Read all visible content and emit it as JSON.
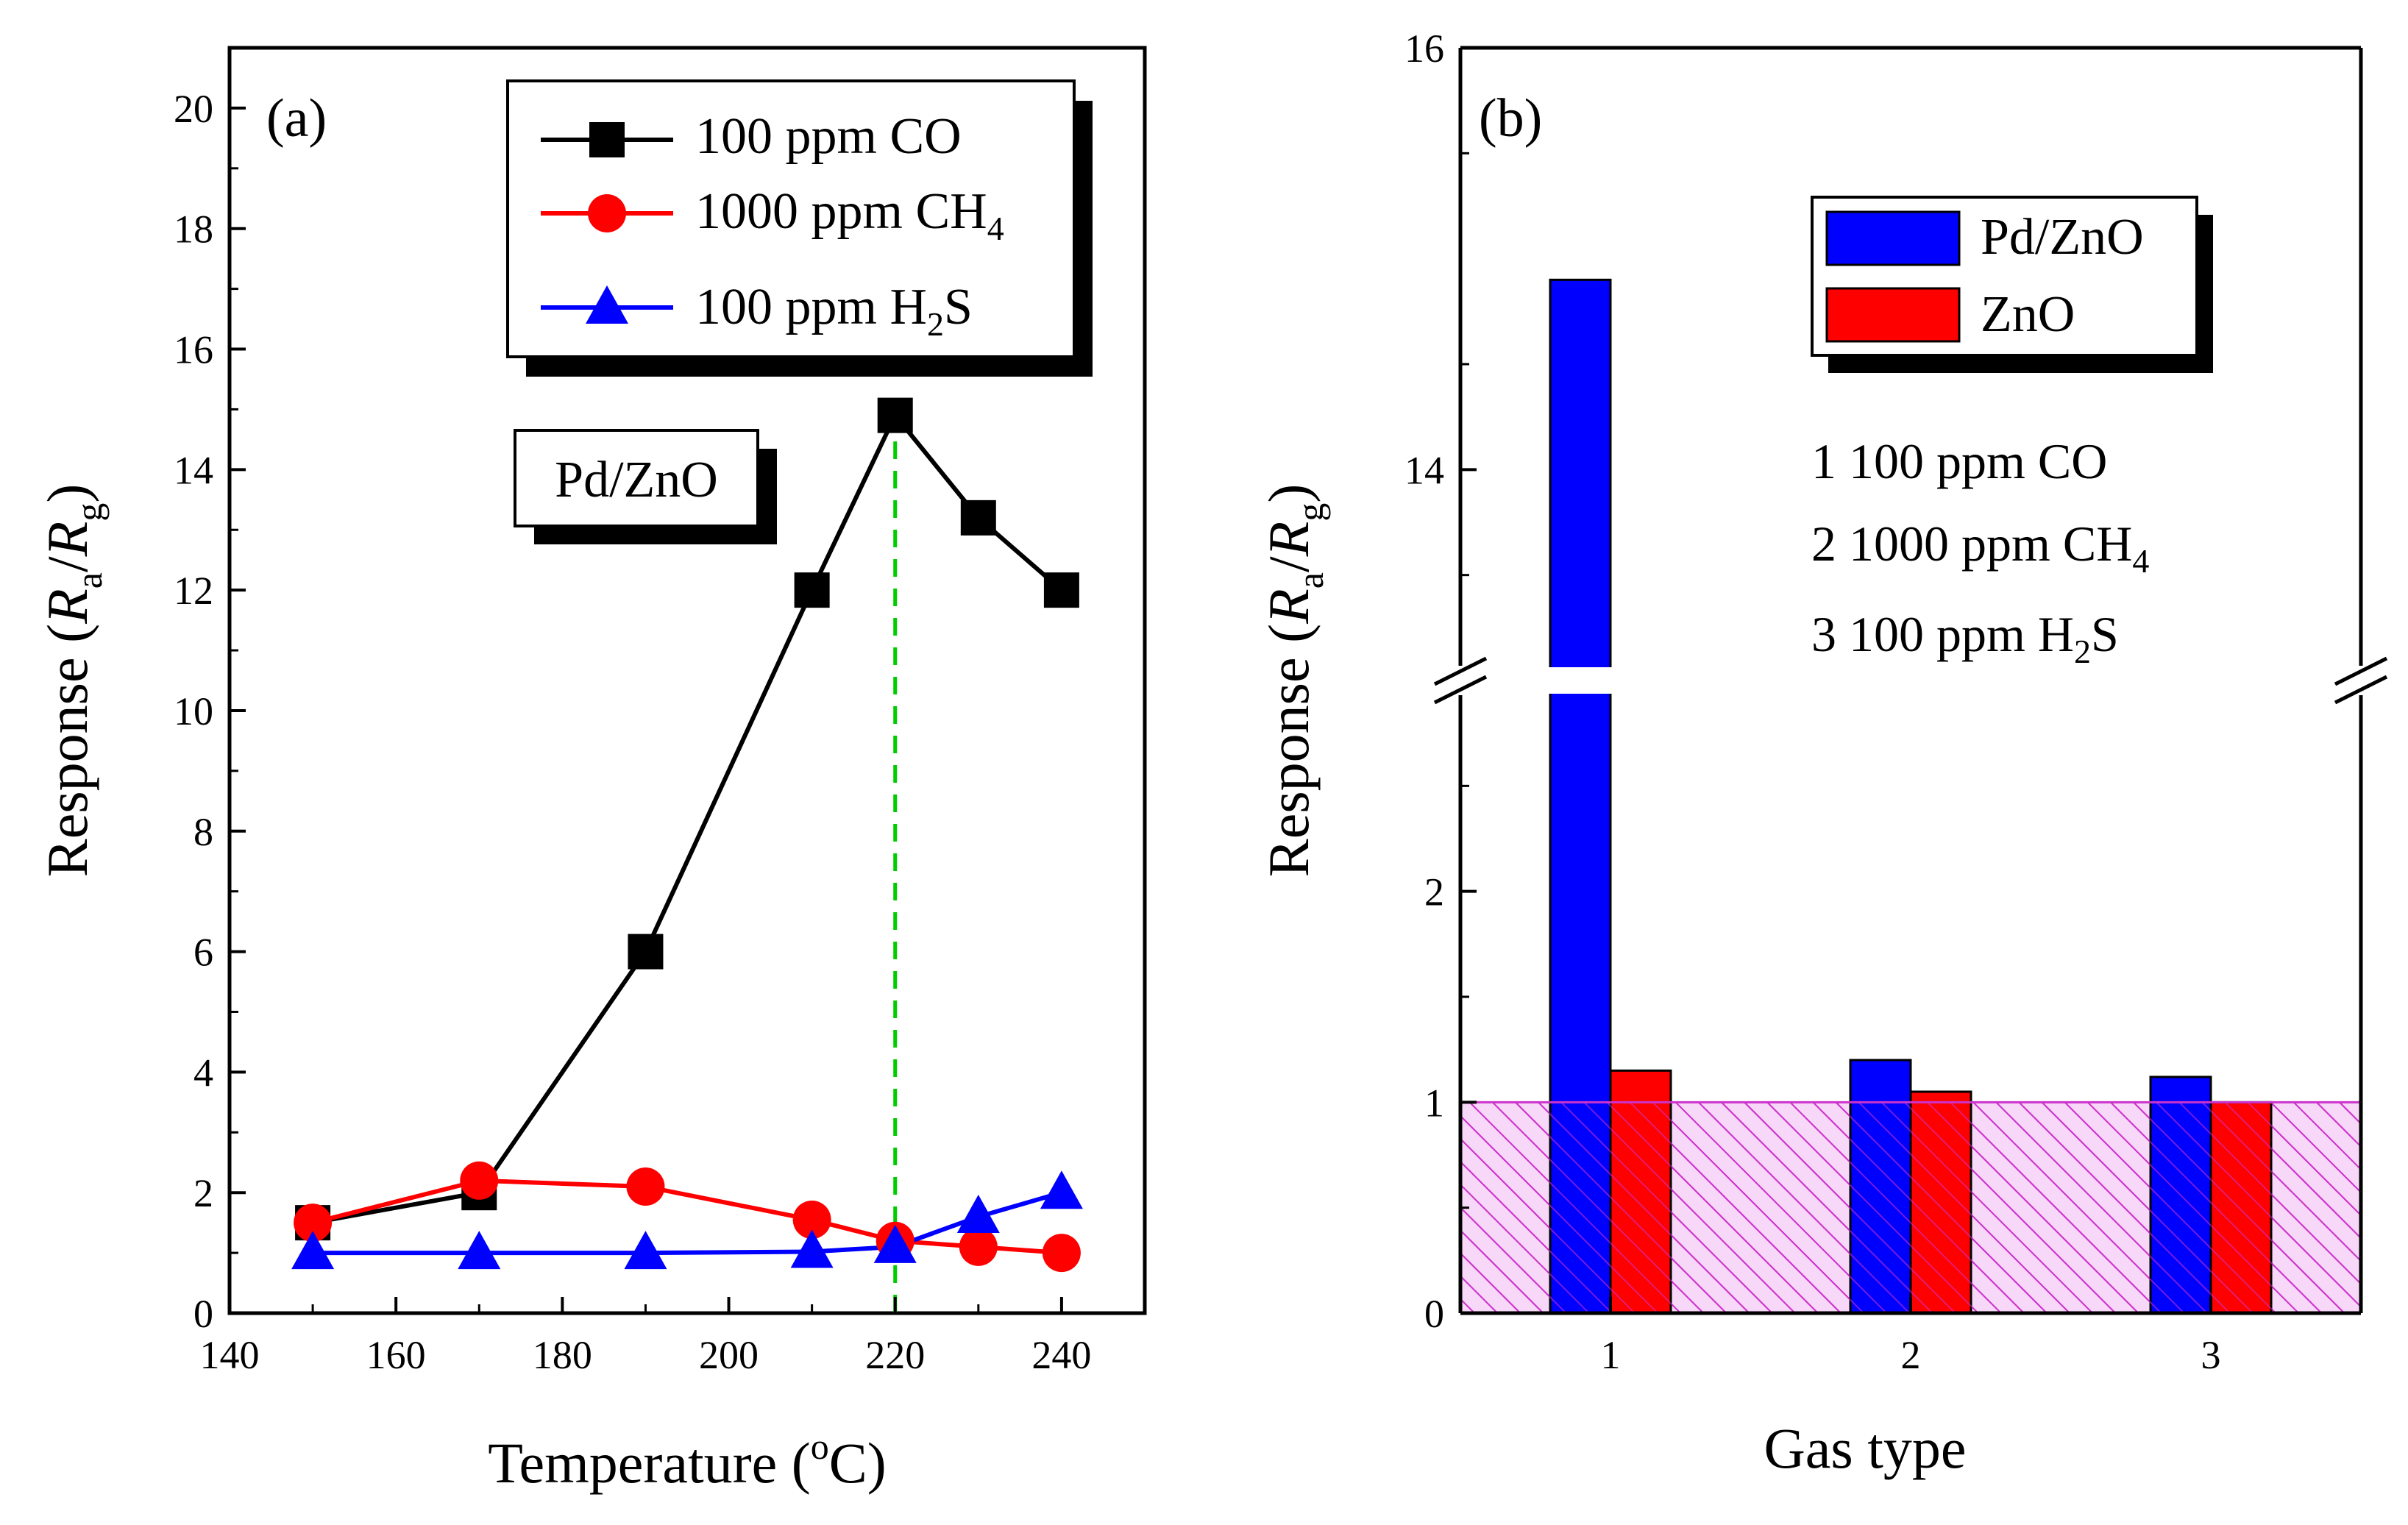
{
  "colors": {
    "co": "#000000",
    "ch4": "#ff0000",
    "h2s": "#0000ff",
    "pdzno_bar": "#0000ff",
    "zno_bar": "#ff0000",
    "guide_line": "#00cc00",
    "baseline_hatch": "#cc33cc",
    "baseline_fill": "#f8d8f8"
  },
  "chart_data": [
    {
      "type": "line",
      "panel_label": "(a)",
      "xlabel": {
        "main": "Temperature (",
        "sup": "o",
        "end": "C)"
      },
      "ylabel": {
        "main": "Response (",
        "r1": "R",
        "s1": "a",
        "sep": "/",
        "r2": "R",
        "s2": "g",
        "end": ")"
      },
      "xlim": [
        140,
        250
      ],
      "ylim": [
        0,
        21
      ],
      "xticks": [
        140,
        160,
        180,
        200,
        220,
        240
      ],
      "yticks": [
        0,
        2,
        4,
        6,
        8,
        10,
        12,
        14,
        16,
        18,
        20
      ],
      "guide_line_x": 220,
      "inset_label": "Pd/ZnO",
      "legend_position": "top-right",
      "series": [
        {
          "key": "co",
          "name": "100 ppm CO",
          "legend": {
            "pre": "100 ppm CO",
            "sub": "",
            "post": ""
          },
          "marker": "square",
          "x": [
            150,
            170,
            190,
            210,
            220,
            230,
            240
          ],
          "y": [
            1.5,
            2.0,
            6.0,
            12.0,
            14.9,
            13.2,
            12.0
          ]
        },
        {
          "key": "ch4",
          "name": "1000 ppm CH4",
          "legend": {
            "pre": "1000 ppm CH",
            "sub": "4",
            "post": ""
          },
          "marker": "circle",
          "x": [
            150,
            170,
            190,
            210,
            220,
            230,
            240
          ],
          "y": [
            1.5,
            2.2,
            2.1,
            1.55,
            1.2,
            1.1,
            1.0
          ]
        },
        {
          "key": "h2s",
          "name": "100 ppm H2S",
          "legend": {
            "pre": "100 ppm H",
            "sub": "2",
            "post": "S"
          },
          "marker": "triangle",
          "x": [
            150,
            170,
            190,
            210,
            220,
            230,
            240
          ],
          "y": [
            1.0,
            1.0,
            1.0,
            1.02,
            1.1,
            1.6,
            2.0
          ]
        }
      ]
    },
    {
      "type": "bar",
      "panel_label": "(b)",
      "xlabel": "Gas type",
      "ylabel": {
        "main": "Response (",
        "r1": "R",
        "s1": "a",
        "sep": "/",
        "r2": "R",
        "s2": "g",
        "end": ")"
      },
      "categories": [
        "1",
        "2",
        "3"
      ],
      "axis_break": {
        "lower": [
          0,
          3
        ],
        "upper": [
          13,
          16
        ]
      },
      "yticks": [
        0,
        1,
        2,
        14,
        16
      ],
      "baseline": 1,
      "legend_position": "top-right",
      "series": [
        {
          "key": "pdzno_bar",
          "name": "Pd/ZnO",
          "values": [
            14.9,
            1.2,
            1.12
          ]
        },
        {
          "key": "zno_bar",
          "name": "ZnO",
          "values": [
            1.15,
            1.05,
            1.0
          ]
        }
      ],
      "gas_key": [
        {
          "pre": "1 100 ppm CO",
          "sub": "",
          "post": ""
        },
        {
          "pre": "2 1000 ppm CH",
          "sub": "4",
          "post": ""
        },
        {
          "pre": "3 100 ppm H",
          "sub": "2",
          "post": "S"
        }
      ]
    }
  ]
}
